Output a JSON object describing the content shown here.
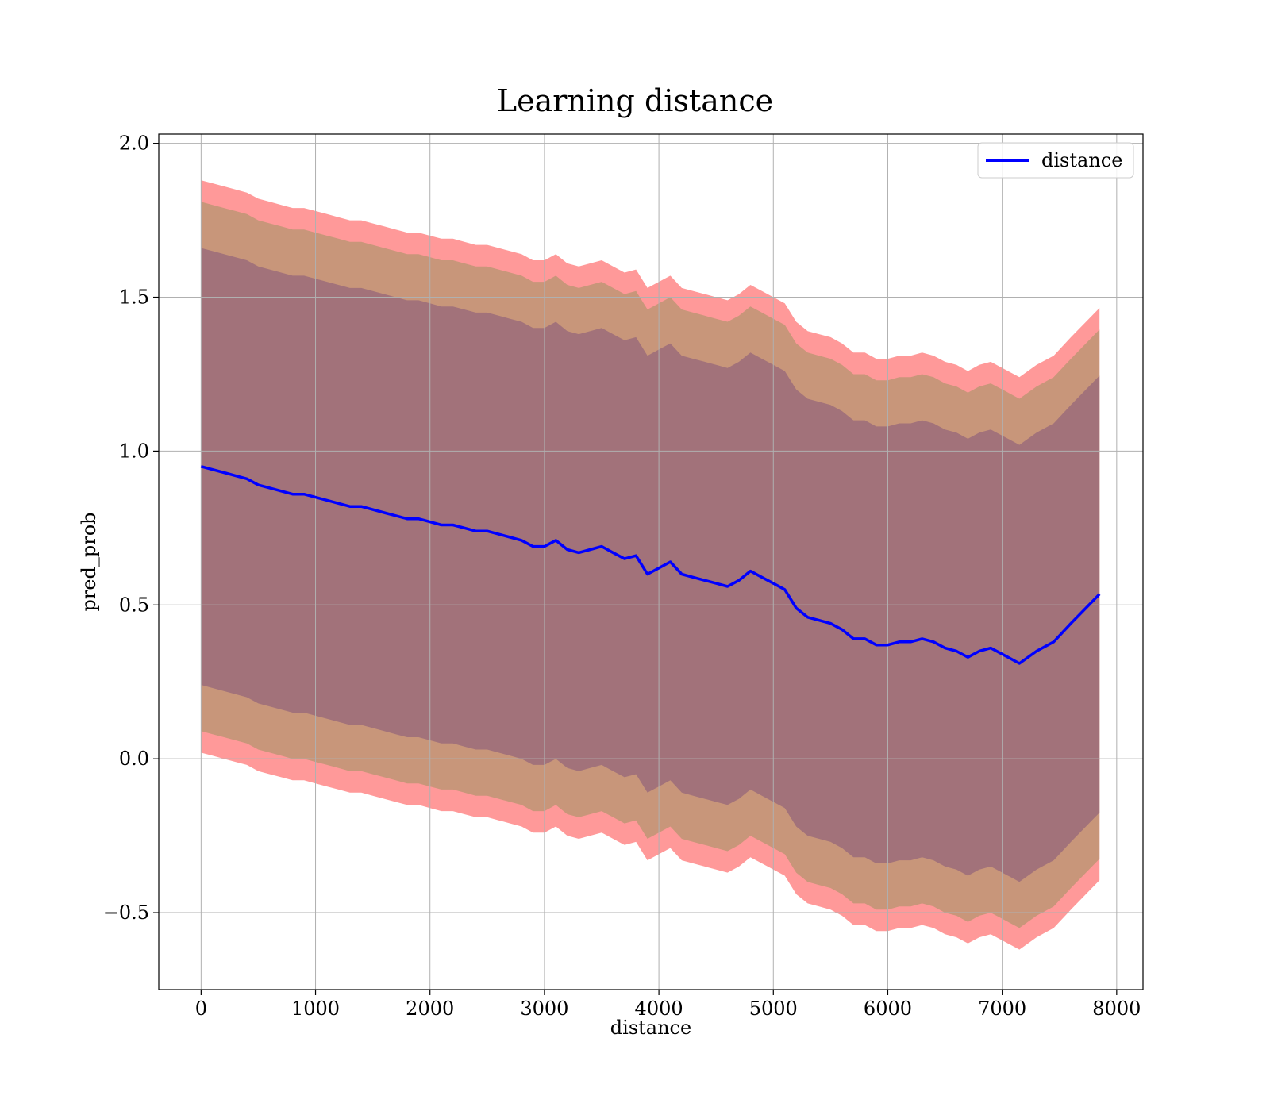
{
  "chart_data": {
    "type": "line",
    "title": "Learning distance",
    "xlabel": "distance",
    "ylabel": "pred_prob",
    "xlim": [
      -370,
      8230
    ],
    "ylim": [
      -0.75,
      2.03
    ],
    "xticks": [
      0,
      1000,
      2000,
      3000,
      4000,
      5000,
      6000,
      7000,
      8000
    ],
    "xtick_labels": [
      "0",
      "1000",
      "2000",
      "3000",
      "4000",
      "5000",
      "6000",
      "7000",
      "8000"
    ],
    "yticks": [
      -0.5,
      0.0,
      0.5,
      1.0,
      1.5,
      2.0
    ],
    "ytick_labels": [
      "−0.5",
      "0.0",
      "0.5",
      "1.0",
      "1.5",
      "2.0"
    ],
    "grid": true,
    "legend": {
      "position": "top-right",
      "entries": [
        "distance"
      ]
    },
    "colors": {
      "line": "#0000ff",
      "band_outer": "#ff9999",
      "band_middle": "#c8967a",
      "band_inner": "#a2727a",
      "grid": "#b0b0b0"
    },
    "series": [
      {
        "name": "distance",
        "x": [
          0,
          100,
          200,
          300,
          400,
          500,
          600,
          700,
          800,
          900,
          1000,
          1100,
          1200,
          1300,
          1400,
          1500,
          1600,
          1700,
          1800,
          1900,
          2000,
          2100,
          2200,
          2300,
          2400,
          2500,
          2600,
          2700,
          2800,
          2900,
          3000,
          3100,
          3200,
          3300,
          3400,
          3500,
          3600,
          3700,
          3800,
          3900,
          4000,
          4100,
          4200,
          4300,
          4400,
          4500,
          4600,
          4700,
          4800,
          4900,
          5000,
          5100,
          5200,
          5300,
          5400,
          5500,
          5600,
          5700,
          5800,
          5900,
          6000,
          6100,
          6200,
          6300,
          6400,
          6500,
          6600,
          6700,
          6800,
          6900,
          7000,
          7150,
          7300,
          7450,
          7600,
          7850
        ],
        "y": [
          0.95,
          0.94,
          0.93,
          0.92,
          0.91,
          0.89,
          0.88,
          0.87,
          0.86,
          0.86,
          0.85,
          0.84,
          0.83,
          0.82,
          0.82,
          0.81,
          0.8,
          0.79,
          0.78,
          0.78,
          0.77,
          0.76,
          0.76,
          0.75,
          0.74,
          0.74,
          0.73,
          0.72,
          0.71,
          0.69,
          0.69,
          0.71,
          0.68,
          0.67,
          0.68,
          0.69,
          0.67,
          0.65,
          0.66,
          0.6,
          0.62,
          0.64,
          0.6,
          0.59,
          0.58,
          0.57,
          0.56,
          0.58,
          0.61,
          0.59,
          0.57,
          0.55,
          0.49,
          0.46,
          0.45,
          0.44,
          0.42,
          0.39,
          0.39,
          0.37,
          0.37,
          0.38,
          0.38,
          0.39,
          0.38,
          0.36,
          0.35,
          0.33,
          0.35,
          0.36,
          0.34,
          0.31,
          0.35,
          0.38,
          0.44,
          0.535
        ],
        "band_inner": {
          "lower_offset": -0.71,
          "upper_offset": 0.71
        },
        "band_middle": {
          "lower_offset": -0.86,
          "upper_offset": 0.86
        },
        "band_outer": {
          "lower_offset": -0.93,
          "upper_offset": 0.93
        }
      }
    ]
  }
}
